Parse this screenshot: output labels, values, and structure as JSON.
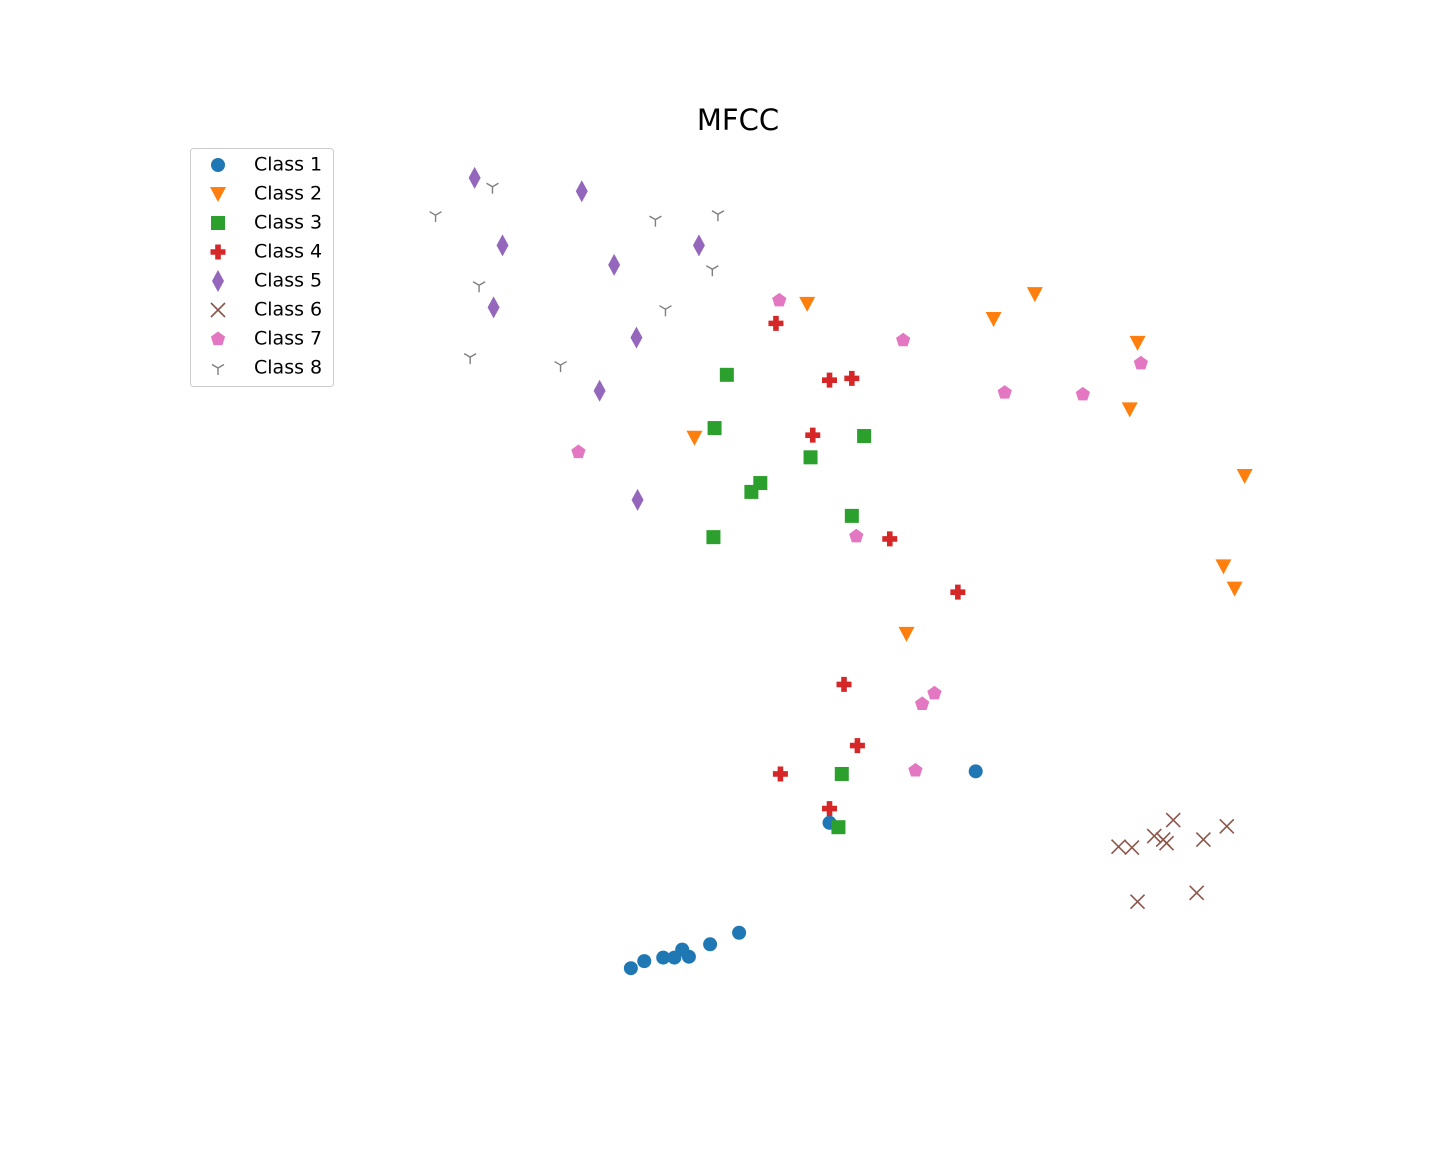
{
  "chart_data": {
    "type": "scatter",
    "title": "MFCC",
    "xlim": [
      0,
      100
    ],
    "ylim": [
      0,
      100
    ],
    "legend": "upper left",
    "axes_visible": false,
    "series": [
      {
        "name": "Class 1",
        "color": "#1f77b4",
        "marker": "circle",
        "x": [
          71.3,
          58.2,
          50.1,
          47.5,
          45.6,
          45.0,
          44.3,
          43.3,
          41.6,
          40.4
        ],
        "y": [
          28.6,
          22.8,
          10.4,
          9.1,
          7.7,
          8.5,
          7.6,
          7.6,
          7.2,
          6.4
        ]
      },
      {
        "name": "Class 2",
        "color": "#ff7f0e",
        "marker": "triangle-down",
        "x": [
          56.2,
          72.9,
          76.6,
          85.8,
          85.1,
          46.1,
          95.4,
          93.5,
          94.5,
          65.1
        ],
        "y": [
          81.3,
          79.6,
          82.4,
          76.9,
          69.4,
          66.2,
          61.9,
          51.7,
          49.2,
          44.1
        ]
      },
      {
        "name": "Class 3",
        "color": "#2ca02c",
        "marker": "square",
        "x": [
          49.0,
          47.9,
          61.3,
          56.5,
          52.0,
          51.2,
          60.2,
          47.8,
          59.3,
          59.0
        ],
        "y": [
          73.3,
          67.3,
          66.4,
          64.0,
          61.1,
          60.1,
          57.4,
          55.0,
          28.3,
          22.3
        ]
      },
      {
        "name": "Class 4",
        "color": "#d62728",
        "marker": "plus",
        "x": [
          53.4,
          58.2,
          60.2,
          56.7,
          63.6,
          69.7,
          59.5,
          60.7,
          53.8,
          58.2
        ],
        "y": [
          79.1,
          72.7,
          72.9,
          66.5,
          54.8,
          48.8,
          38.4,
          31.5,
          28.3,
          24.4
        ]
      },
      {
        "name": "Class 5",
        "color": "#9467bd",
        "marker": "thin-diamond",
        "x": [
          26.4,
          36.0,
          28.9,
          46.5,
          38.9,
          28.1,
          40.9,
          37.6,
          41.0
        ],
        "y": [
          95.5,
          94.0,
          87.9,
          87.9,
          85.7,
          80.9,
          77.5,
          71.5,
          59.2
        ]
      },
      {
        "name": "Class 6",
        "color": "#8c564b",
        "marker": "x",
        "x": [
          89.0,
          93.8,
          87.3,
          91.7,
          84.1,
          85.3,
          88.1,
          88.4,
          85.8,
          91.1
        ],
        "y": [
          23.1,
          22.4,
          21.3,
          20.9,
          20.1,
          20.0,
          20.9,
          20.5,
          13.9,
          14.9
        ]
      },
      {
        "name": "Class 7",
        "color": "#e377c2",
        "marker": "pentagon",
        "x": [
          53.7,
          64.8,
          86.1,
          73.9,
          80.9,
          35.7,
          60.6,
          67.6,
          66.5,
          65.9
        ],
        "y": [
          81.7,
          77.2,
          74.6,
          71.3,
          71.1,
          64.6,
          55.1,
          37.4,
          36.2,
          28.7
        ]
      },
      {
        "name": "Class 8",
        "color": "#7f7f7f",
        "marker": "tri-down",
        "x": [
          28.0,
          22.9,
          42.6,
          48.2,
          4.7,
          47.7,
          26.8,
          43.5,
          26.0,
          34.1
        ],
        "y": [
          94.5,
          91.3,
          90.8,
          91.4,
          86.2,
          85.2,
          83.4,
          80.7,
          75.3,
          74.4
        ]
      }
    ]
  }
}
